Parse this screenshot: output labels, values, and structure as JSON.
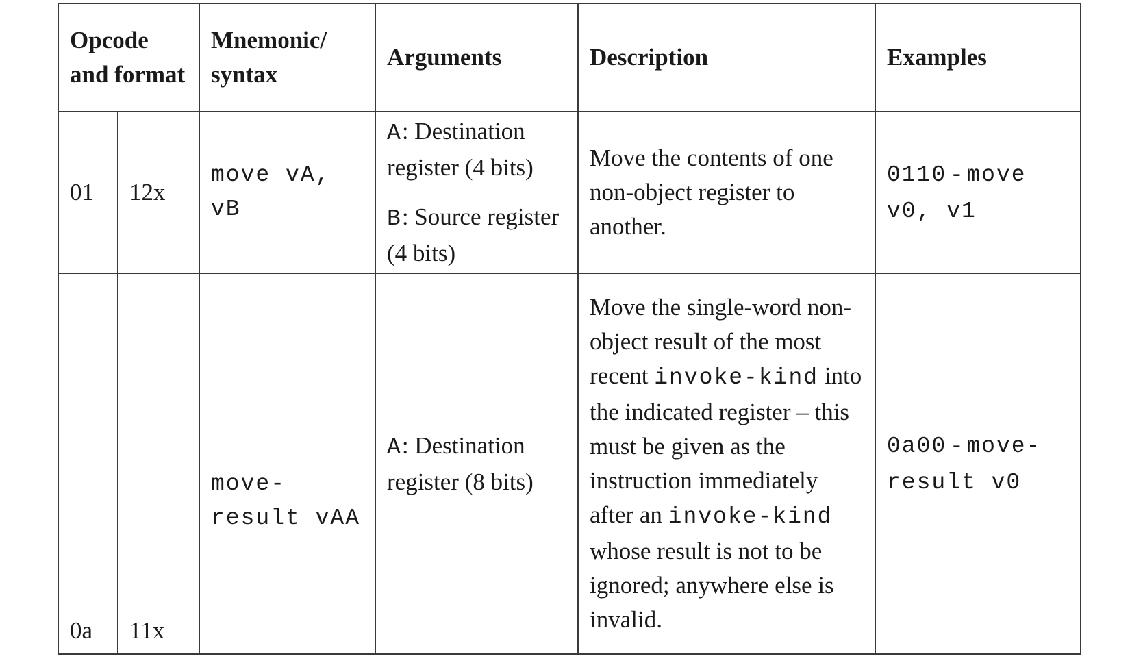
{
  "headers": {
    "opcode_format": "Opcode and format",
    "mnemonic": "Mnemonic/ syntax",
    "arguments": "Arguments",
    "description": "Description",
    "examples": "Examples"
  },
  "rows": [
    {
      "opcode": "01",
      "format": "12x",
      "mnemonic": "move vA, vB",
      "arguments": [
        {
          "reg": "A",
          "text": ": Destination register (4 bits)"
        },
        {
          "reg": "B",
          "text": ": Source register (4 bits)"
        }
      ],
      "description": "Move the contents of one non-object register to another.",
      "example": {
        "code": "0110",
        "sep": " - ",
        "instr": "move v0, v1"
      }
    },
    {
      "opcode": "0a",
      "format": "11x",
      "mnemonic": "move-result vAA",
      "arguments": [
        {
          "reg": "A",
          "text": ": Destination register (8 bits)"
        }
      ],
      "description_parts": {
        "p1": "Move the single-word non-object result of the most recent ",
        "c1": "invoke-kind",
        "p2": " into the indicated register – this must be given as the instruction immediately after an ",
        "c2": "invoke-kind",
        "p3": " whose result is not to be ignored; anywhere else is invalid."
      },
      "example": {
        "code": "0a00",
        "sep": " - ",
        "instr": "move-result v0"
      }
    }
  ]
}
